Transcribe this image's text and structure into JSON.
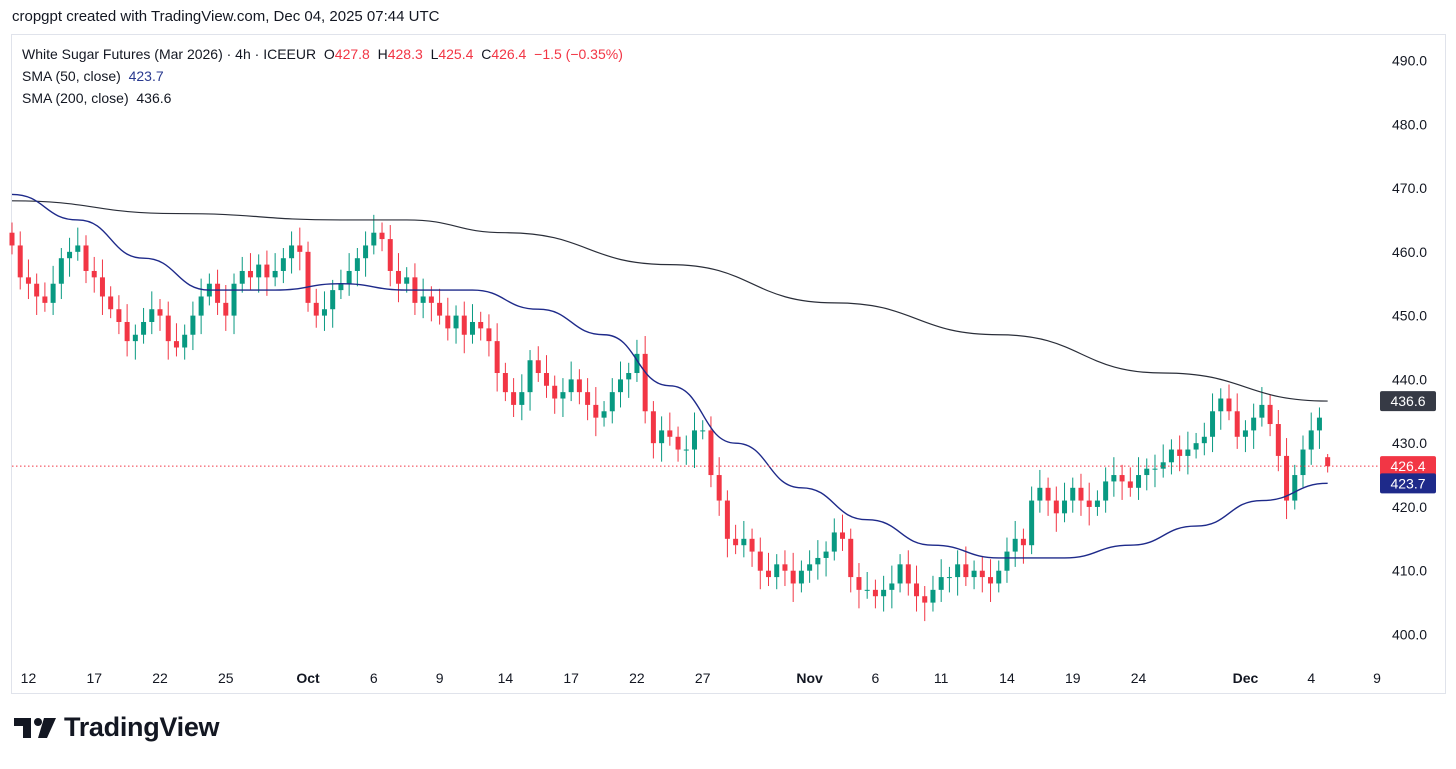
{
  "header": {
    "text": "cropgpt created with TradingView.com, Dec 04, 2025 07:44 UTC"
  },
  "legend": {
    "title": "White Sugar Futures (Mar 2026) · 4h · ICEEUR",
    "open_label": "O",
    "open": "427.8",
    "high_label": "H",
    "high": "428.3",
    "low_label": "L",
    "low": "425.4",
    "close_label": "C",
    "close": "426.4",
    "change": "−1.5 (−0.35%)",
    "sma50_label": "SMA (50, close)",
    "sma50_value": "423.7",
    "sma200_label": "SMA (200, close)",
    "sma200_value": "436.6"
  },
  "footer": {
    "brand": "TradingView",
    "logo_icon": "tradingview-logo-icon"
  },
  "chart_data": {
    "type": "candlestick",
    "symbol": "White Sugar Futures (Mar 2026)",
    "interval": "4h",
    "exchange": "ICEEUR",
    "ylim": [
      396,
      494
    ],
    "y_ticks": [
      400,
      410,
      420,
      430,
      440,
      450,
      460,
      470,
      480,
      490
    ],
    "y_tick_labels": [
      "400.0",
      "410.0",
      "420.0",
      "430.0",
      "440.0",
      "450.0",
      "460.0",
      "470.0",
      "480.0",
      "490.0"
    ],
    "x_ticks": [
      {
        "label": "12",
        "i": 2,
        "bold": false
      },
      {
        "label": "17",
        "i": 10,
        "bold": false
      },
      {
        "label": "22",
        "i": 18,
        "bold": false
      },
      {
        "label": "25",
        "i": 26,
        "bold": false
      },
      {
        "label": "Oct",
        "i": 36,
        "bold": true
      },
      {
        "label": "6",
        "i": 44,
        "bold": false
      },
      {
        "label": "9",
        "i": 52,
        "bold": false
      },
      {
        "label": "14",
        "i": 60,
        "bold": false
      },
      {
        "label": "17",
        "i": 68,
        "bold": false
      },
      {
        "label": "22",
        "i": 76,
        "bold": false
      },
      {
        "label": "27",
        "i": 84,
        "bold": false
      },
      {
        "label": "Nov",
        "i": 97,
        "bold": true
      },
      {
        "label": "6",
        "i": 105,
        "bold": false
      },
      {
        "label": "11",
        "i": 113,
        "bold": false
      },
      {
        "label": "14",
        "i": 121,
        "bold": false
      },
      {
        "label": "19",
        "i": 129,
        "bold": false
      },
      {
        "label": "24",
        "i": 137,
        "bold": false
      },
      {
        "label": "Dec",
        "i": 150,
        "bold": true
      },
      {
        "label": "4",
        "i": 158,
        "bold": false
      },
      {
        "label": "9",
        "i": 166,
        "bold": false
      }
    ],
    "up_color": "#089981",
    "down_color": "#f23645",
    "sma50_color": "#1e2a8a",
    "sma200_color": "#2a2e39",
    "last_price": 426.4,
    "last_price_label": "426.4",
    "sma50_last": 423.7,
    "sma50_last_label": "423.7",
    "sma200_last": 436.6,
    "sma200_last_label": "436.6",
    "closes": [
      461,
      456,
      455,
      453,
      452,
      455,
      459,
      460,
      461,
      457,
      456,
      453,
      451,
      449,
      446,
      447,
      449,
      451,
      450,
      446,
      445,
      447,
      450,
      453,
      455,
      452,
      450,
      455,
      457,
      456,
      458,
      456,
      457,
      459,
      461,
      460,
      452,
      450,
      451,
      454,
      455,
      457,
      459,
      461,
      463,
      462,
      457,
      455,
      456,
      452,
      453,
      452,
      450,
      448,
      450,
      447,
      449,
      448,
      446,
      441,
      438,
      436,
      438,
      443,
      441,
      439,
      437,
      438,
      440,
      438,
      436,
      434,
      435,
      438,
      440,
      441,
      444,
      435,
      430,
      432,
      431,
      429,
      429,
      432,
      432,
      425,
      421,
      415,
      414,
      415,
      413,
      410,
      409,
      411,
      410,
      408,
      410,
      411,
      412,
      413,
      416,
      415,
      409,
      407,
      407,
      406,
      407,
      408,
      411,
      408,
      406,
      405,
      407,
      409,
      409,
      411,
      409,
      410,
      409,
      408,
      410,
      413,
      415,
      414,
      421,
      423,
      421,
      419,
      421,
      423,
      421,
      420,
      421,
      424,
      425,
      424,
      423,
      425,
      426,
      426,
      427,
      429,
      428,
      429,
      430,
      431,
      435,
      437,
      435,
      431,
      432,
      434,
      436,
      433,
      428,
      421,
      425,
      429,
      432,
      434,
      426.4
    ],
    "sma50": [
      [
        0,
        469
      ],
      [
        8,
        465
      ],
      [
        16,
        459
      ],
      [
        24,
        454
      ],
      [
        32,
        454
      ],
      [
        40,
        455
      ],
      [
        48,
        454
      ],
      [
        56,
        454
      ],
      [
        64,
        451
      ],
      [
        72,
        447
      ],
      [
        80,
        439
      ],
      [
        88,
        430
      ],
      [
        96,
        423
      ],
      [
        104,
        418
      ],
      [
        112,
        414
      ],
      [
        120,
        412
      ],
      [
        128,
        412
      ],
      [
        136,
        414
      ],
      [
        144,
        417
      ],
      [
        152,
        421
      ],
      [
        160,
        423.7
      ]
    ],
    "sma200": [
      [
        0,
        468
      ],
      [
        20,
        466
      ],
      [
        40,
        465
      ],
      [
        48,
        465
      ],
      [
        60,
        463
      ],
      [
        80,
        458
      ],
      [
        100,
        452
      ],
      [
        120,
        447
      ],
      [
        140,
        441
      ],
      [
        160,
        436.6
      ]
    ]
  }
}
